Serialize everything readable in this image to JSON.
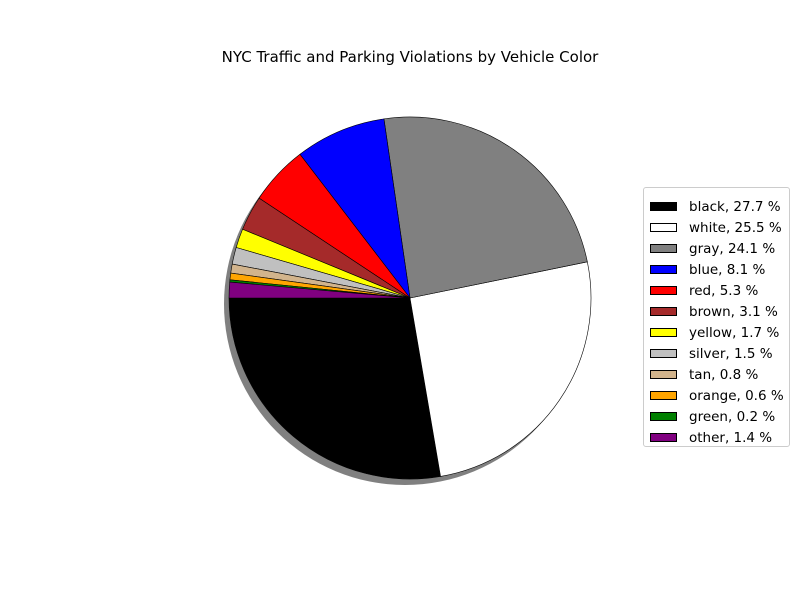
{
  "chart_data": {
    "type": "pie",
    "title": "NYC Traffic and Parking Violations by Vehicle Color",
    "categories": [
      "black",
      "white",
      "gray",
      "blue",
      "red",
      "brown",
      "yellow",
      "silver",
      "tan",
      "orange",
      "green",
      "other"
    ],
    "values": [
      27.7,
      25.5,
      24.1,
      8.1,
      5.3,
      3.1,
      1.7,
      1.5,
      0.8,
      0.6,
      0.2,
      1.4
    ],
    "value_unit": "%",
    "colors": [
      "#000000",
      "#ffffff",
      "#808080",
      "#0000ff",
      "#ff0000",
      "#a52a2a",
      "#ffff00",
      "#c0c0c0",
      "#d2b48c",
      "#ffa500",
      "#008000",
      "#800080"
    ],
    "legend_labels": [
      "black, 27.7 %",
      "white, 25.5 %",
      "gray, 24.1 %",
      "blue, 8.1 %",
      "red, 5.3 %",
      "brown, 3.1 %",
      "yellow, 1.7 %",
      "silver, 1.5 %",
      "tan, 0.8 %",
      "orange, 0.6 %",
      "green, 0.2 %",
      "other, 1.4 %"
    ],
    "start_angle_deg": 180,
    "direction": "counterclockwise",
    "shadow": true,
    "legend_placement": "right"
  }
}
